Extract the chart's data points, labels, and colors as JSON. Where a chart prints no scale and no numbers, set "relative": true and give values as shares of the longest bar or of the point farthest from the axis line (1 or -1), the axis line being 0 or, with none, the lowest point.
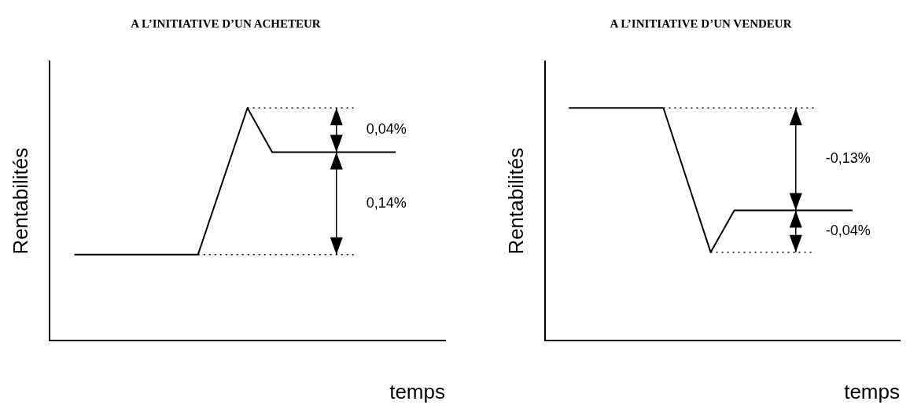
{
  "chart_data": [
    {
      "type": "line",
      "title": "A L’INITIATIVE D’UN ACHETEUR",
      "xlabel": "temps",
      "ylabel": "Rentabilités",
      "relative": true,
      "categories": [
        null,
        null,
        null,
        null,
        null,
        null,
        null,
        null,
        null,
        null,
        null,
        null,
        null,
        null,
        null,
        null,
        null
      ],
      "series": [
        {
          "color": "#000000",
          "values": [
            null,
            0.37,
            0.37,
            0.37,
            0.37,
            0.37,
            0.37,
            null,
            1,
            0.81,
            0.81,
            0.81,
            0.81,
            0.81,
            0.81,
            null,
            null
          ]
        }
      ],
      "ref_lines": [
        {
          "axis": "y",
          "value": 1,
          "line_style": "dotted"
        },
        {
          "axis": "y",
          "value": 0.37,
          "line_style": "dotted"
        }
      ],
      "annotations": [
        "0,04%",
        "0,14%"
      ],
      "legend": false,
      "grid": false,
      "marker": "none"
    },
    {
      "type": "line",
      "title": "A L’INITIATIVE D’UN VENDEUR",
      "xlabel": "temps",
      "ylabel": "Rentabilités",
      "relative": true,
      "categories": [
        null,
        null,
        null,
        null,
        null,
        null,
        null,
        null,
        null,
        null,
        null,
        null,
        null,
        null,
        null,
        null
      ],
      "series": [
        {
          "color": "#000000",
          "values": [
            null,
            1,
            1,
            1,
            1,
            1,
            null,
            0.38,
            0.56,
            0.56,
            0.56,
            0.56,
            0.56,
            0.56,
            null,
            null
          ]
        }
      ],
      "ref_lines": [
        {
          "axis": "y",
          "value": 1,
          "line_style": "dotted"
        },
        {
          "axis": "y",
          "value": 0.38,
          "line_style": "dotted"
        }
      ],
      "annotations": [
        "-0,13%",
        "-0,04%"
      ],
      "legend": false,
      "grid": false,
      "marker": "none"
    }
  ]
}
